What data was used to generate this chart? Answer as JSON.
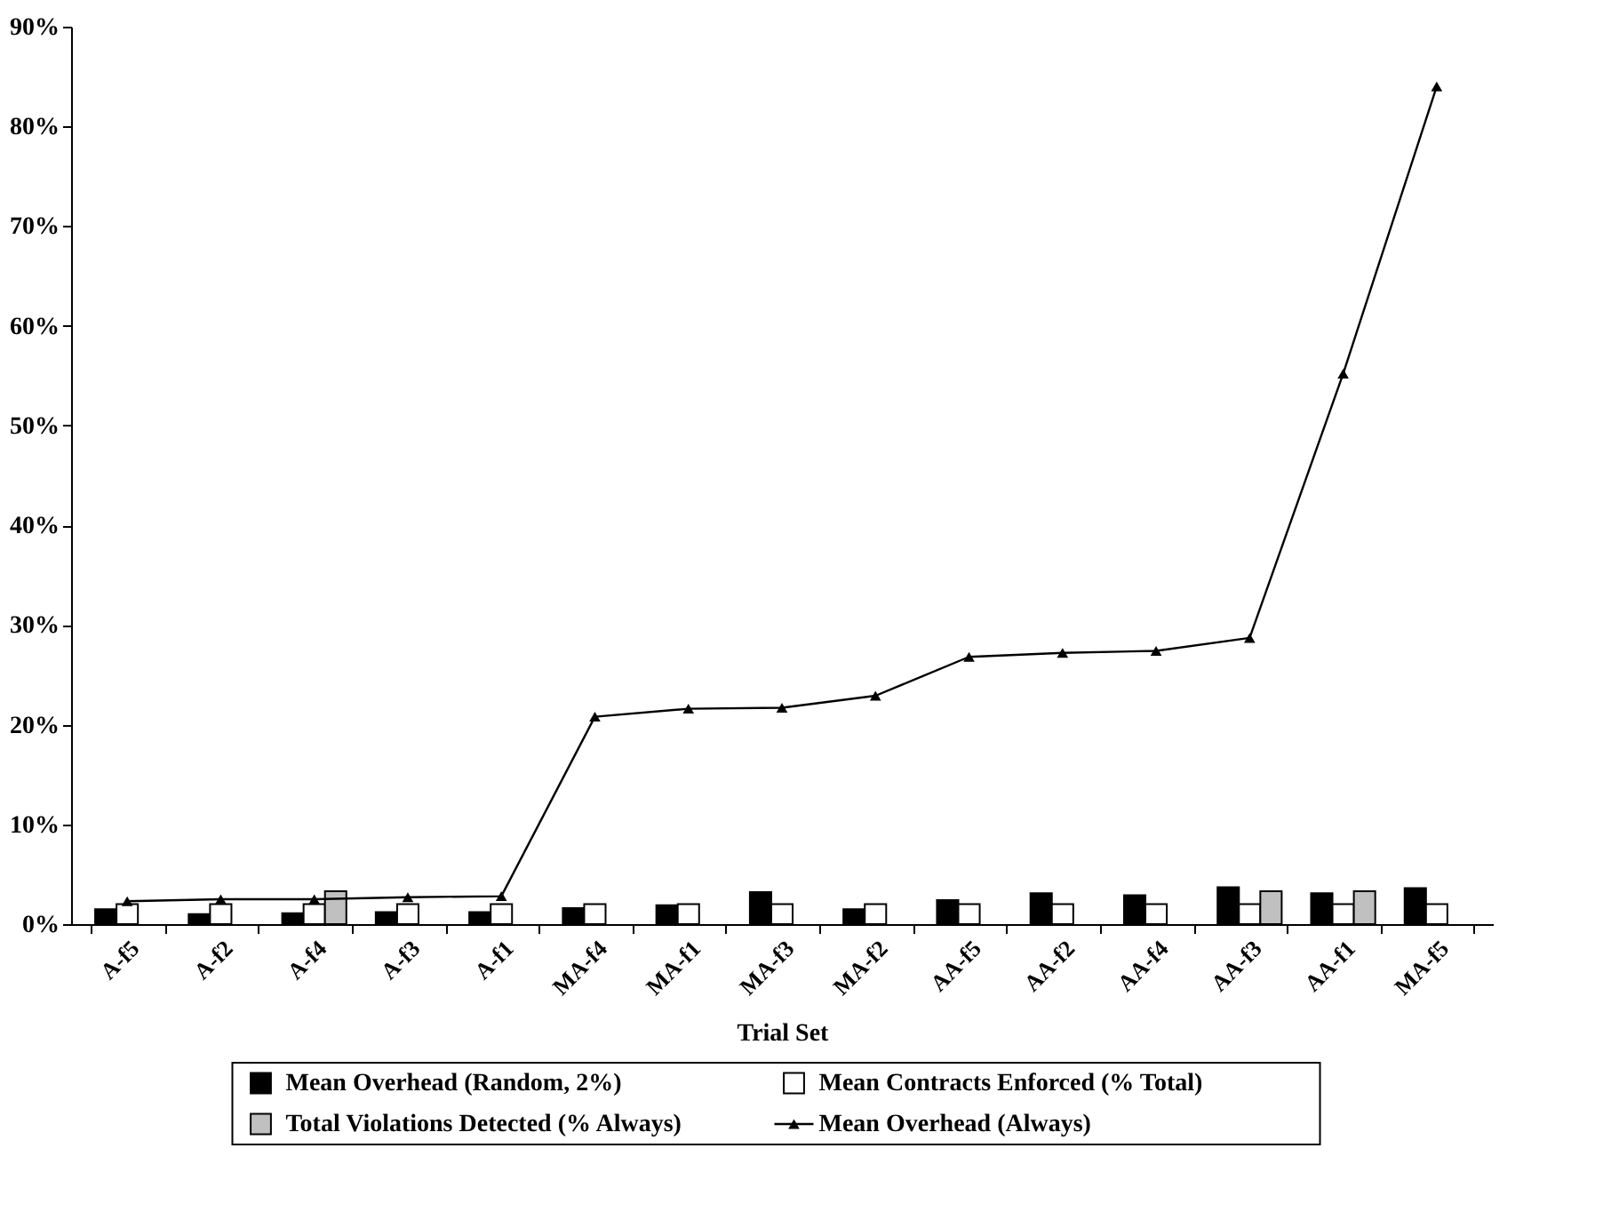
{
  "chart_data": {
    "type": "bar",
    "xlabel": "Trial Set",
    "categories": [
      "A-f5",
      "A-f2",
      "A-f4",
      "A-f3",
      "A-f1",
      "MA-f4",
      "MA-f1",
      "MA-f3",
      "MA-f2",
      "AA-f5",
      "AA-f2",
      "AA-f4",
      "AA-f3",
      "AA-f1",
      "MA-f5"
    ],
    "series": [
      {
        "name": "Mean Overhead (Random, 2%)",
        "color": "#000000",
        "values": [
          1.5,
          1.0,
          1.1,
          1.2,
          1.2,
          1.6,
          1.9,
          3.2,
          1.5,
          2.4,
          3.1,
          2.9,
          3.7,
          3.1,
          3.6
        ]
      },
      {
        "name": "Mean Contracts Enforced (% Total)",
        "color": "#ffffff",
        "values": [
          2.0,
          2.0,
          2.0,
          2.0,
          2.0,
          2.0,
          2.0,
          2.0,
          2.0,
          2.0,
          2.0,
          2.0,
          2.0,
          2.0,
          2.0
        ]
      },
      {
        "name": "Total Violations Detected (% Always)",
        "color": "#c0c0c0",
        "values": [
          null,
          null,
          3.3,
          null,
          null,
          null,
          null,
          null,
          null,
          null,
          null,
          null,
          3.3,
          3.3,
          null
        ]
      },
      {
        "name": "Mean Overhead (Always)",
        "type": "line",
        "color": "#000000",
        "marker": "triangle",
        "line_style": "solid",
        "values": [
          2.3,
          2.5,
          2.5,
          2.7,
          2.8,
          20.8,
          21.6,
          21.7,
          22.9,
          26.8,
          27.2,
          27.4,
          28.7,
          55.2,
          84.0
        ]
      }
    ],
    "ylim": [
      0,
      90
    ],
    "yticks": [
      {
        "value": 0,
        "label": "0%"
      },
      {
        "value": 10,
        "label": "10%"
      },
      {
        "value": 20,
        "label": "20%"
      },
      {
        "value": 30,
        "label": "30%"
      },
      {
        "value": 40,
        "label": "40%"
      },
      {
        "value": 50,
        "label": "50%"
      },
      {
        "value": 60,
        "label": "60%"
      },
      {
        "value": 70,
        "label": "70%"
      },
      {
        "value": 80,
        "label": "80%"
      },
      {
        "value": 90,
        "label": "90%"
      }
    ],
    "grid": false,
    "legend": "bottom"
  }
}
